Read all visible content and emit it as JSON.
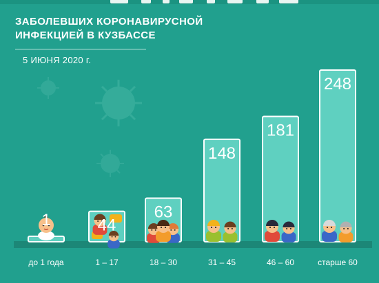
{
  "header": {
    "subtitle": "ЗАБОЛЕВШИХ КОРОНАВИРУСНОЙ\nИНФЕКЦИЕЙ В КУЗБАССЕ",
    "date": "5 ИЮНЯ 2020 г."
  },
  "colors": {
    "background": "#21a08e",
    "bar_fill": "#5fd0c0",
    "bar_outline": "#ffffff",
    "plinth": "#1c8777"
  },
  "chart_data": {
    "type": "bar",
    "categories": [
      "до 1 года",
      "1 – 17",
      "18 – 30",
      "31 – 45",
      "46 – 60",
      "старше 60"
    ],
    "values": [
      1,
      44,
      63,
      148,
      181,
      248
    ],
    "value_labels": [
      "1",
      "44",
      "63",
      "148",
      "181",
      "248"
    ],
    "icons": [
      "baby-icon",
      "kids-icon",
      "young-adults-icon",
      "adults-couple-icon",
      "middle-aged-couple-icon",
      "seniors-couple-icon"
    ],
    "grid": false,
    "legend": "none"
  }
}
